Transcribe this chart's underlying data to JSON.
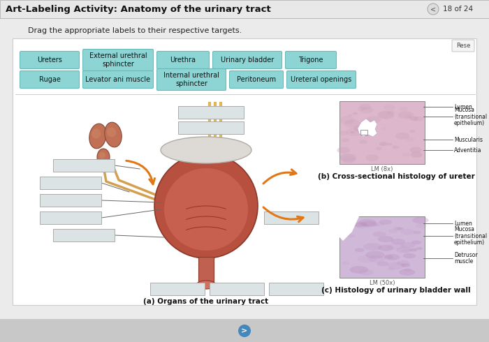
{
  "title": "Art-Labeling Activity: Anatomy of the urinary tract",
  "page_indicator": "18 of 24",
  "instruction": "Drag the appropriate labels to their respective targets.",
  "label_bg": "#8dd4d4",
  "label_edge": "#6bbaba",
  "box_bg": "#dce3e5",
  "box_edge": "#aaaaaa",
  "header_bg": "#e8e8e8",
  "content_bg": "#ffffff",
  "outer_bg": "#f0f0f0",
  "bottom_bg": "#c8c8c8",
  "reset_btn": "Rese",
  "caption_a": "(a) Organs of the urinary tract",
  "caption_b": "(b) Cross-sectional histology of ureter",
  "caption_c": "(c) Histology of urinary bladder wall",
  "lm_b": "LM (8x)",
  "lm_c": "LM (50x)",
  "histo_b_labels": [
    "Lumen",
    "Mucosa\n(transitional\nepithelium)",
    "Muscularis",
    "Adventitia"
  ],
  "histo_c_labels": [
    "Lumen",
    "Mucosa\n(transitional\nepithelium)",
    "Detrusor\nmuscle"
  ],
  "row1_labels": [
    "Ureters",
    "External urethral\nsphincter",
    "Urethra",
    "Urinary bladder",
    "Trigone"
  ],
  "row2_labels": [
    "Rugae",
    "Levator ani muscle",
    "Internal urethral\nsphincter",
    "Peritoneum",
    "Ureteral openings"
  ]
}
